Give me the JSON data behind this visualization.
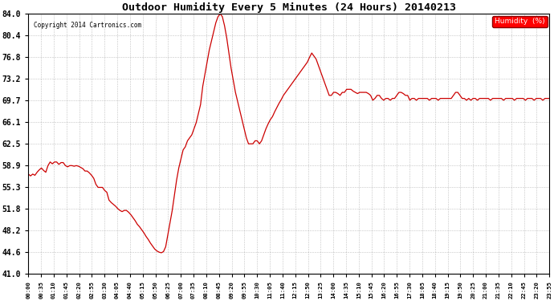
{
  "title": "Outdoor Humidity Every 5 Minutes (24 Hours) 20140213",
  "copyright": "Copyright 2014 Cartronics.com",
  "legend_label": "Humidity  (%)",
  "line_color": "#cc0000",
  "background_color": "#ffffff",
  "plot_bg_color": "#ffffff",
  "grid_color": "#999999",
  "yticks": [
    41.0,
    44.6,
    48.2,
    51.8,
    55.3,
    58.9,
    62.5,
    66.1,
    69.7,
    73.2,
    76.8,
    80.4,
    84.0
  ],
  "ylim": [
    41.0,
    84.0
  ],
  "x_labels": [
    "00:00",
    "00:35",
    "01:10",
    "01:45",
    "02:20",
    "02:55",
    "03:30",
    "04:05",
    "04:40",
    "05:15",
    "05:50",
    "06:25",
    "07:00",
    "07:35",
    "08:10",
    "08:45",
    "09:20",
    "09:55",
    "10:30",
    "11:05",
    "11:40",
    "12:15",
    "12:50",
    "13:25",
    "14:00",
    "14:35",
    "15:10",
    "15:45",
    "16:20",
    "16:55",
    "17:30",
    "18:05",
    "18:40",
    "19:15",
    "19:50",
    "20:25",
    "21:00",
    "21:35",
    "22:10",
    "22:45",
    "23:20",
    "23:55"
  ],
  "humidity_values": [
    57.5,
    57.2,
    57.5,
    57.3,
    57.8,
    58.2,
    58.5,
    58.1,
    57.8,
    58.9,
    59.5,
    59.2,
    59.5,
    59.5,
    59.1,
    59.4,
    59.4,
    58.9,
    58.7,
    58.9,
    58.9,
    58.8,
    58.9,
    58.8,
    58.6,
    58.4,
    58.0,
    58.0,
    57.7,
    57.3,
    56.8,
    55.8,
    55.3,
    55.3,
    55.3,
    54.8,
    54.5,
    53.2,
    52.8,
    52.5,
    52.2,
    51.8,
    51.5,
    51.3,
    51.5,
    51.5,
    51.2,
    50.8,
    50.3,
    49.8,
    49.2,
    48.8,
    48.3,
    47.8,
    47.2,
    46.7,
    46.1,
    45.6,
    45.1,
    44.8,
    44.6,
    44.5,
    44.7,
    45.5,
    47.5,
    49.5,
    51.5,
    54.0,
    56.5,
    58.5,
    60.0,
    61.5,
    62.0,
    63.0,
    63.5,
    64.0,
    65.0,
    66.0,
    67.5,
    69.0,
    72.0,
    74.0,
    76.0,
    78.0,
    79.5,
    81.0,
    82.5,
    83.5,
    84.0,
    83.5,
    82.0,
    80.0,
    77.5,
    75.0,
    73.0,
    71.0,
    69.5,
    68.0,
    66.5,
    65.0,
    63.5,
    62.5,
    62.5,
    62.5,
    63.0,
    63.0,
    62.5,
    63.0,
    64.0,
    65.0,
    65.8,
    66.5,
    67.0,
    67.8,
    68.5,
    69.2,
    69.8,
    70.5,
    71.0,
    71.5,
    72.0,
    72.5,
    73.0,
    73.5,
    74.0,
    74.5,
    75.0,
    75.5,
    76.0,
    76.8,
    77.5,
    77.0,
    76.5,
    75.5,
    74.5,
    73.5,
    72.5,
    71.5,
    70.5,
    70.5,
    71.0,
    71.0,
    70.8,
    70.5,
    71.0,
    71.0,
    71.5,
    71.5,
    71.5,
    71.2,
    71.0,
    70.8,
    71.0,
    71.0,
    71.0,
    71.0,
    70.8,
    70.5,
    69.7,
    70.0,
    70.5,
    70.5,
    70.0,
    69.7,
    70.0,
    70.0,
    69.7,
    70.0,
    70.0,
    70.5,
    71.0,
    71.0,
    70.8,
    70.5,
    70.5,
    69.7,
    70.0,
    70.0,
    69.7,
    70.0,
    70.0,
    70.0,
    70.0,
    70.0,
    69.7,
    70.0,
    70.0,
    70.0,
    69.7,
    70.0,
    70.0,
    70.0,
    70.0,
    70.0,
    70.0,
    70.5,
    71.0,
    71.0,
    70.5,
    70.0,
    70.0,
    69.7,
    70.0,
    69.7,
    70.0,
    70.0,
    69.7,
    70.0,
    70.0,
    70.0,
    70.0,
    70.0,
    69.7,
    70.0,
    70.0,
    70.0,
    70.0,
    70.0,
    69.7,
    70.0,
    70.0,
    70.0,
    70.0,
    69.7,
    70.0,
    70.0,
    70.0,
    70.0,
    69.7,
    70.0,
    70.0,
    70.0,
    69.7,
    70.0,
    70.0,
    70.0,
    69.7,
    70.0,
    70.0,
    70.0
  ]
}
